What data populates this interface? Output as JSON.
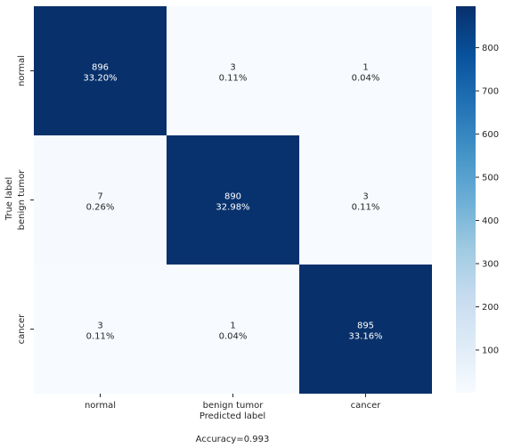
{
  "chart_data": {
    "type": "heatmap",
    "x_categories": [
      "normal",
      "benign tumor",
      "cancer"
    ],
    "y_categories": [
      "normal",
      "benign tumor",
      "cancer"
    ],
    "values": [
      [
        896,
        3,
        1
      ],
      [
        7,
        890,
        3
      ],
      [
        3,
        1,
        895
      ]
    ],
    "percentages": [
      [
        "33.20%",
        "0.11%",
        "0.04%"
      ],
      [
        "0.26%",
        "32.98%",
        "0.11%"
      ],
      [
        "0.11%",
        "0.04%",
        "33.16%"
      ]
    ],
    "xlabel": "Predicted label",
    "ylabel": "True label",
    "footer": "Accuracy=0.993",
    "colormap": "Blues",
    "colorbar": {
      "ticks": [
        100,
        200,
        300,
        400,
        500,
        600,
        700,
        800
      ],
      "min": 1,
      "max": 896
    }
  }
}
